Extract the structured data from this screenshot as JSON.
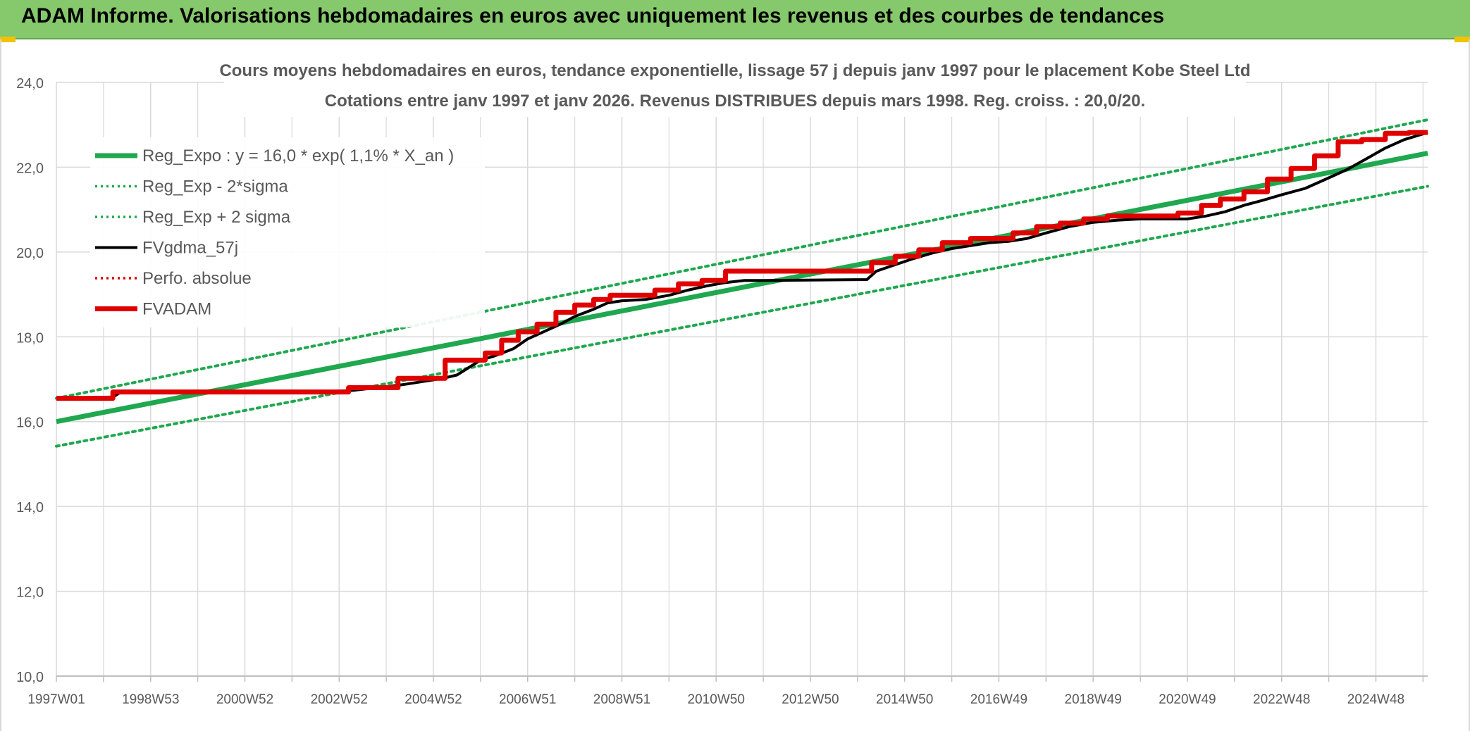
{
  "header": {
    "title": "ADAM Informe. Valorisations hebdomadaires en euros avec uniquement les revenus et des courbes de tendances"
  },
  "colors": {
    "header_bg": "#86c96c",
    "reg_expo": "#1fa84f",
    "sigma": "#1fa84f",
    "fvgdma": "#000000",
    "perfo": "#e00000",
    "fvadam": "#e00000",
    "grid": "#d9d9d9",
    "text": "#595959"
  },
  "chart_data": {
    "type": "line",
    "title_line1": "Cours moyens hebdomadaires en euros, tendance exponentielle, lissage 57 j depuis janv 1997 pour le placement Kobe Steel Ltd",
    "title_line2": "Cotations entre janv 1997 et janv 2026. Revenus DISTRIBUES depuis mars 1998. Reg. croiss. : 20,0/20.",
    "ylim": [
      10,
      24
    ],
    "xlim": [
      1997.0,
      2026.1
    ],
    "grid": true,
    "legend_position": "top-left",
    "y_ticks": [
      "10,0",
      "12,0",
      "14,0",
      "16,0",
      "18,0",
      "20,0",
      "22,0",
      "24,0"
    ],
    "y_tick_values": [
      10,
      12,
      14,
      16,
      18,
      20,
      22,
      24
    ],
    "x_ticks": [
      "1997W01",
      "1998W53",
      "2000W52",
      "2002W52",
      "2004W52",
      "2006W51",
      "2008W51",
      "2010W50",
      "2012W50",
      "2014W50",
      "2016W49",
      "2018W49",
      "2020W49",
      "2022W48",
      "2024W48"
    ],
    "x_tick_values": [
      1997.0,
      1999.0,
      2001.0,
      2003.0,
      2005.0,
      2007.0,
      2009.0,
      2011.0,
      2013.0,
      2015.0,
      2017.0,
      2019.0,
      2021.0,
      2023.0,
      2025.0
    ],
    "series": [
      {
        "name": "Reg_Expo : y = 16,0 * exp( 1,1% *  X_an )",
        "style": "solid-thick",
        "color": "#1fa84f",
        "x": [
          1997.0,
          2026.1
        ],
        "y": [
          16.0,
          22.33
        ]
      },
      {
        "name": "Reg_Exp - 2*sigma",
        "style": "dotted",
        "color": "#1fa84f",
        "x": [
          1997.0,
          2026.1
        ],
        "y": [
          15.42,
          21.55
        ]
      },
      {
        "name": "Reg_Exp + 2 sigma",
        "style": "dotted",
        "color": "#1fa84f",
        "x": [
          1997.0,
          2026.1
        ],
        "y": [
          16.55,
          23.12
        ]
      },
      {
        "name": "FVgdma_57j",
        "style": "solid",
        "color": "#000000",
        "x": [
          1997.0,
          1998.2,
          1998.4,
          2003.0,
          2003.3,
          2004.2,
          2004.4,
          2005.2,
          2005.5,
          2006.0,
          2006.3,
          2006.7,
          2007.0,
          2007.3,
          2007.7,
          2008.0,
          2008.4,
          2008.7,
          2009.0,
          2009.5,
          2010.0,
          2010.4,
          2010.8,
          2011.2,
          2011.6,
          2012.0,
          2014.2,
          2014.4,
          2014.8,
          2015.2,
          2015.6,
          2016.0,
          2016.4,
          2016.8,
          2017.2,
          2017.6,
          2018.0,
          2018.5,
          2019.0,
          2019.5,
          2020.0,
          2021.0,
          2021.4,
          2021.8,
          2022.2,
          2022.6,
          2023.0,
          2023.5,
          2024.0,
          2024.4,
          2024.8,
          2025.2,
          2025.6,
          2026.1
        ],
        "y": [
          16.55,
          16.58,
          16.72,
          16.72,
          16.74,
          16.85,
          16.88,
          17.02,
          17.1,
          17.45,
          17.55,
          17.72,
          17.95,
          18.1,
          18.3,
          18.48,
          18.65,
          18.8,
          18.85,
          18.88,
          18.98,
          19.1,
          19.2,
          19.28,
          19.33,
          19.33,
          19.35,
          19.55,
          19.7,
          19.85,
          19.98,
          20.08,
          20.15,
          20.22,
          20.25,
          20.32,
          20.45,
          20.6,
          20.7,
          20.75,
          20.78,
          20.78,
          20.85,
          20.95,
          21.1,
          21.22,
          21.35,
          21.5,
          21.75,
          21.95,
          22.2,
          22.45,
          22.65,
          22.82
        ]
      },
      {
        "name": "Perfo. absolue",
        "style": "dotted",
        "color": "#e00000",
        "x": [],
        "y": []
      },
      {
        "name": "FVADAM",
        "style": "solid-thick",
        "color": "#e00000",
        "x": [
          1997.0,
          1998.2,
          1998.2,
          2003.2,
          2003.2,
          2004.25,
          2004.25,
          2005.25,
          2005.25,
          2006.1,
          2006.1,
          2006.45,
          2006.45,
          2006.8,
          2006.8,
          2007.2,
          2007.2,
          2007.6,
          2007.6,
          2008.0,
          2008.0,
          2008.4,
          2008.4,
          2008.75,
          2008.75,
          2009.7,
          2009.7,
          2010.2,
          2010.2,
          2010.7,
          2010.7,
          2011.2,
          2011.2,
          2014.3,
          2014.3,
          2014.8,
          2014.8,
          2015.3,
          2015.3,
          2015.8,
          2015.8,
          2016.4,
          2016.4,
          2017.3,
          2017.3,
          2017.8,
          2017.8,
          2018.3,
          2018.3,
          2018.8,
          2018.8,
          2019.3,
          2019.3,
          2020.8,
          2020.8,
          2021.3,
          2021.3,
          2021.7,
          2021.7,
          2022.2,
          2022.2,
          2022.7,
          2022.7,
          2023.2,
          2023.2,
          2023.7,
          2023.7,
          2024.2,
          2024.2,
          2024.7,
          2024.7,
          2025.2,
          2025.2,
          2025.7,
          2025.7,
          2026.1
        ],
        "y": [
          16.55,
          16.55,
          16.7,
          16.7,
          16.8,
          16.8,
          17.02,
          17.02,
          17.45,
          17.45,
          17.62,
          17.62,
          17.92,
          17.92,
          18.12,
          18.12,
          18.3,
          18.3,
          18.58,
          18.58,
          18.75,
          18.75,
          18.88,
          18.88,
          18.98,
          18.98,
          19.1,
          19.1,
          19.25,
          19.25,
          19.33,
          19.33,
          19.55,
          19.55,
          19.75,
          19.75,
          19.9,
          19.9,
          20.05,
          20.05,
          20.22,
          20.22,
          20.32,
          20.32,
          20.45,
          20.45,
          20.6,
          20.6,
          20.68,
          20.68,
          20.78,
          20.78,
          20.85,
          20.85,
          20.92,
          20.92,
          21.1,
          21.1,
          21.25,
          21.25,
          21.42,
          21.42,
          21.72,
          21.72,
          21.97,
          21.97,
          22.27,
          22.27,
          22.6,
          22.6,
          22.65,
          22.65,
          22.8,
          22.8,
          22.82,
          22.82
        ]
      }
    ]
  }
}
